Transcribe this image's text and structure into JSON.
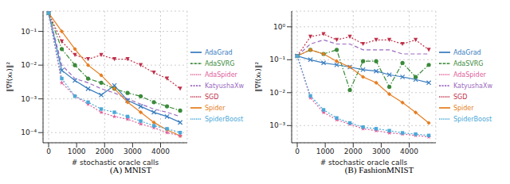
{
  "chart_data": [
    {
      "type": "line",
      "title": "(A) MNIST",
      "x_label": "# stochastic oracle calls",
      "y_label": "‖∇f(xₖ)‖²",
      "log": "y",
      "grid": true,
      "legend": "right",
      "x": [
        0,
        470,
        940,
        1410,
        1880,
        2350,
        2820,
        3290,
        3760,
        4230,
        4700
      ],
      "xlim": [
        -200,
        4950
      ],
      "xticks": [
        0,
        1000,
        2000,
        3000,
        4000
      ],
      "ylim": [
        5e-05,
        0.4
      ],
      "yticks": [
        {
          "value": 0.0001,
          "label": "10⁻⁴"
        },
        {
          "value": 0.001,
          "label": "10⁻³"
        },
        {
          "value": 0.01,
          "label": "10⁻²"
        },
        {
          "value": 0.1,
          "label": "10⁻¹"
        }
      ],
      "series": [
        {
          "name": "AdaGrad",
          "color": "#3a7dbf",
          "marker": "x",
          "line_style": "solid",
          "values": [
            0.35,
            0.007,
            0.0035,
            0.002,
            0.0013,
            0.0025,
            0.0009,
            0.0006,
            0.0004,
            0.0003,
            0.0002
          ]
        },
        {
          "name": "SGD",
          "color": "#c0304a",
          "marker": "triangle_down",
          "line_style": "dotted",
          "values": [
            0.35,
            0.05,
            0.02,
            0.015,
            0.02,
            0.015,
            0.015,
            0.01,
            0.006,
            0.004,
            0.002
          ]
        },
        {
          "name": "KatyushaXw",
          "color": "#9b6bc0",
          "marker": "none",
          "line_style": "dashed",
          "values": [
            0.35,
            0.01,
            0.004,
            0.003,
            0.002,
            0.0015,
            0.001,
            0.0007,
            0.0005,
            0.0004,
            0.0003
          ]
        },
        {
          "name": "AdaSVRG",
          "color": "#3b8a3a",
          "marker": "circle",
          "line_style": "dashdot",
          "values": [
            0.35,
            0.03,
            0.01,
            0.004,
            0.003,
            0.002,
            0.0015,
            0.0012,
            0.0008,
            0.0006,
            0.00045
          ]
        },
        {
          "name": "Spider",
          "color": "#e67e22",
          "marker": "diamond",
          "line_style": "solid",
          "values": [
            0.35,
            0.1,
            0.03,
            0.01,
            0.005,
            0.002,
            0.0008,
            0.0004,
            0.0002,
            0.00012,
            8e-05
          ]
        },
        {
          "name": "AdaSpider",
          "color": "#e0609a",
          "marker": "star",
          "line_style": "dotted",
          "values": [
            0.35,
            0.003,
            0.0012,
            0.0007,
            0.0004,
            0.0003,
            0.00025,
            0.00018,
            0.00014,
            0.0001,
            8e-05
          ]
        },
        {
          "name": "SpiderBoost",
          "color": "#4aa8d8",
          "marker": "square",
          "line_style": "dotted",
          "values": [
            0.35,
            0.004,
            0.0012,
            0.0008,
            0.0005,
            0.0004,
            0.0003,
            0.00022,
            0.00016,
            0.00013,
            0.0001
          ]
        }
      ]
    },
    {
      "type": "line",
      "title": "(B) FashionMNIST",
      "x_label": "# stochastic oracle calls",
      "y_label": "‖∇f(xₖ)‖²",
      "log": "y",
      "grid": true,
      "legend": "right",
      "x": [
        0,
        470,
        940,
        1410,
        1880,
        2350,
        2820,
        3290,
        3760,
        4230,
        4700
      ],
      "xlim": [
        -200,
        4950
      ],
      "xticks": [
        0,
        1000,
        2000,
        3000,
        4000
      ],
      "ylim": [
        0.0003,
        3
      ],
      "yticks": [
        {
          "value": 0.001,
          "label": "10⁻³"
        },
        {
          "value": 0.01,
          "label": "10⁻²"
        },
        {
          "value": 0.1,
          "label": "10⁻¹"
        },
        {
          "value": 1,
          "label": "10⁰"
        }
      ],
      "series": [
        {
          "name": "AdaGrad",
          "color": "#3a7dbf",
          "marker": "x",
          "line_style": "solid",
          "values": [
            0.13,
            0.1,
            0.08,
            0.07,
            0.06,
            0.05,
            0.045,
            0.035,
            0.03,
            0.025,
            0.02
          ]
        },
        {
          "name": "SGD",
          "color": "#c0304a",
          "marker": "triangle_down",
          "line_style": "dotted",
          "values": [
            0.13,
            0.5,
            0.6,
            0.4,
            0.5,
            0.3,
            0.4,
            0.4,
            0.3,
            0.4,
            0.2
          ]
        },
        {
          "name": "KatyushaXw",
          "color": "#9b6bc0",
          "marker": "none",
          "line_style": "dashed",
          "values": [
            0.13,
            0.3,
            0.4,
            0.3,
            0.3,
            0.2,
            0.2,
            0.2,
            0.15,
            0.15,
            0.15
          ]
        },
        {
          "name": "AdaSVRG",
          "color": "#3b8a3a",
          "marker": "circle",
          "line_style": "dashdot",
          "values": [
            0.13,
            0.2,
            0.15,
            0.2,
            0.012,
            0.09,
            0.09,
            0.015,
            0.08,
            0.03,
            0.07
          ]
        },
        {
          "name": "Spider",
          "color": "#e67e22",
          "marker": "diamond",
          "line_style": "solid",
          "values": [
            0.13,
            0.2,
            0.15,
            0.09,
            0.06,
            0.03,
            0.02,
            0.009,
            0.005,
            0.0025,
            0.0012
          ]
        },
        {
          "name": "AdaSpider",
          "color": "#e0609a",
          "marker": "star",
          "line_style": "dotted",
          "values": [
            0.13,
            0.007,
            0.0025,
            0.0015,
            0.0011,
            0.0008,
            0.0007,
            0.0006,
            0.00055,
            0.0005,
            0.00045
          ]
        },
        {
          "name": "SpiderBoost",
          "color": "#4aa8d8",
          "marker": "square",
          "line_style": "dotted",
          "values": [
            0.13,
            0.008,
            0.003,
            0.0017,
            0.0012,
            0.0009,
            0.0008,
            0.0007,
            0.0006,
            0.00055,
            0.0005
          ]
        }
      ]
    }
  ]
}
